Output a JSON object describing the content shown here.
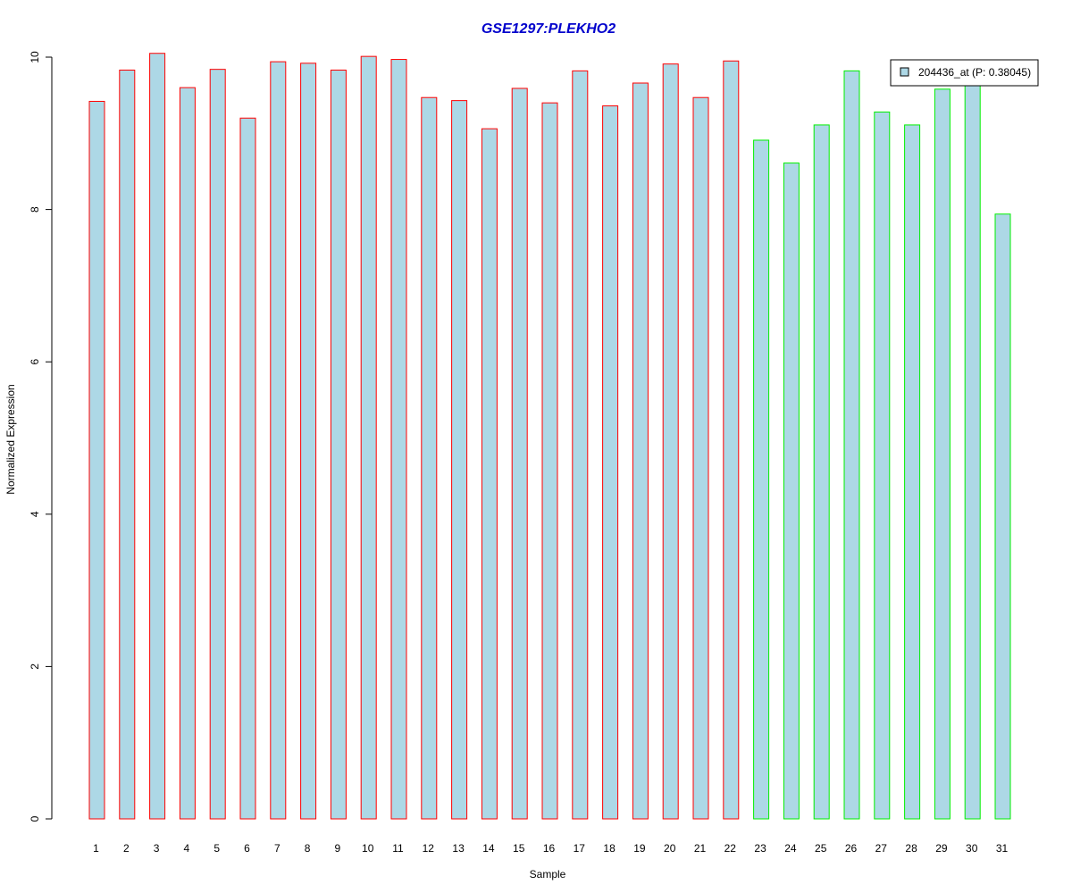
{
  "chart_data": {
    "type": "bar",
    "title": "GSE1297:PLEKHO2",
    "xlabel": "Sample",
    "ylabel": "Normalized Expression",
    "ylim": [
      0,
      10
    ],
    "y_ticks": [
      "0",
      "2",
      "4",
      "6",
      "8",
      "10"
    ],
    "categories": [
      "1",
      "2",
      "3",
      "4",
      "5",
      "6",
      "7",
      "8",
      "9",
      "10",
      "11",
      "12",
      "13",
      "14",
      "15",
      "16",
      "17",
      "18",
      "19",
      "20",
      "21",
      "22",
      "23",
      "24",
      "25",
      "26",
      "27",
      "28",
      "29",
      "30",
      "31"
    ],
    "series": [
      {
        "name": "204436_at (P: 0.38045)",
        "values": [
          9.42,
          9.83,
          10.05,
          9.6,
          9.84,
          9.2,
          9.94,
          9.92,
          9.83,
          10.01,
          9.97,
          9.47,
          9.43,
          9.06,
          9.59,
          9.4,
          9.82,
          9.36,
          9.66,
          9.91,
          9.47,
          9.95,
          8.91,
          8.61,
          9.11,
          9.82,
          9.28,
          9.11,
          9.58,
          9.65,
          7.94
        ],
        "groups": [
          "red",
          "red",
          "red",
          "red",
          "red",
          "red",
          "red",
          "red",
          "red",
          "red",
          "red",
          "red",
          "red",
          "red",
          "red",
          "red",
          "red",
          "red",
          "red",
          "red",
          "red",
          "red",
          "green",
          "green",
          "green",
          "green",
          "green",
          "green",
          "green",
          "green",
          "green"
        ]
      }
    ],
    "grid": false,
    "legend_position": "top-right"
  },
  "colors": {
    "title": "#0000CC",
    "bar_fill": "#ADD8E6",
    "red_border": "#FF0000",
    "green_border": "#00EE00",
    "axis": "#000000"
  }
}
